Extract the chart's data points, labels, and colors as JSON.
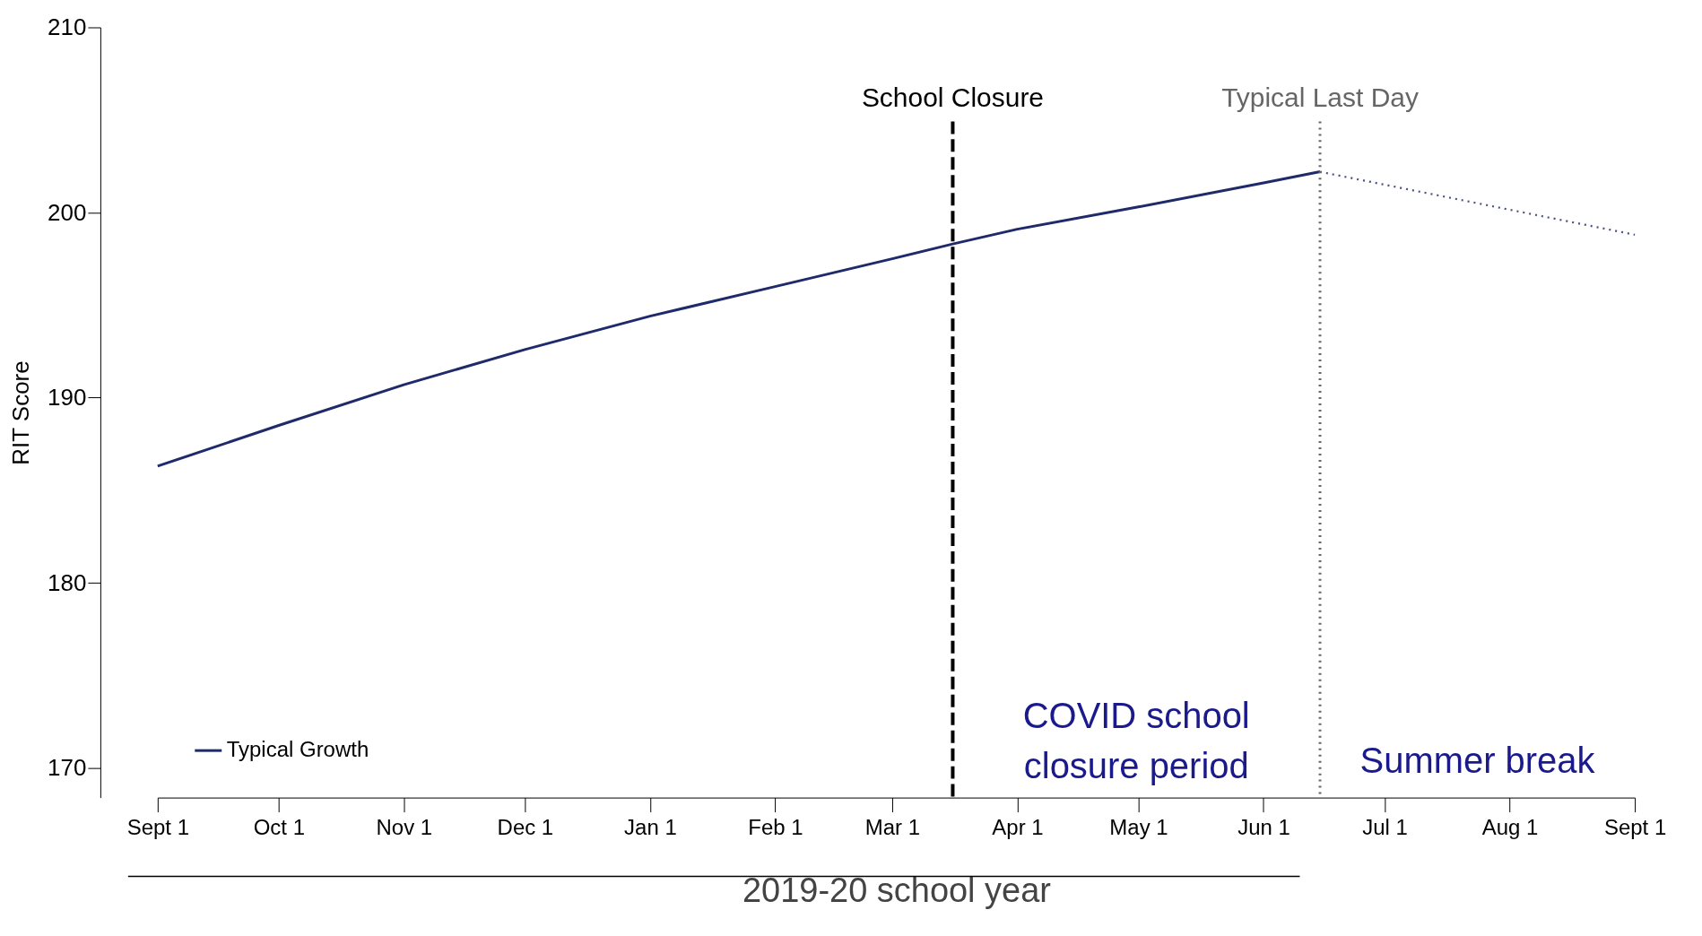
{
  "chart_data": {
    "type": "line",
    "ylabel": "RIT Score",
    "xlabel": "2019-20 school year",
    "xlim": [
      "2019-09-01",
      "2020-09-01"
    ],
    "ylim": [
      168.4,
      210
    ],
    "yticks": [
      170,
      180,
      190,
      200,
      210
    ],
    "xticks": [
      {
        "value": "2019-09-01",
        "label": "Sept 1"
      },
      {
        "value": "2019-10-01",
        "label": "Oct 1"
      },
      {
        "value": "2019-11-01",
        "label": "Nov 1"
      },
      {
        "value": "2019-12-01",
        "label": "Dec 1"
      },
      {
        "value": "2020-01-01",
        "label": "Jan 1"
      },
      {
        "value": "2020-02-01",
        "label": "Feb 1"
      },
      {
        "value": "2020-03-01",
        "label": "Mar 1"
      },
      {
        "value": "2020-04-01",
        "label": "Apr 1"
      },
      {
        "value": "2020-05-01",
        "label": "May 1"
      },
      {
        "value": "2020-06-01",
        "label": "Jun 1"
      },
      {
        "value": "2020-07-01",
        "label": "Jul 1"
      },
      {
        "value": "2020-08-01",
        "label": "Aug 1"
      },
      {
        "value": "2020-09-01",
        "label": "Sept 1"
      }
    ],
    "series": [
      {
        "name": "Typical Growth",
        "color": "#1f2a6b",
        "line_style": "solid",
        "x": [
          "2019-09-01",
          "2019-10-01",
          "2019-11-01",
          "2019-12-01",
          "2020-01-01",
          "2020-02-01",
          "2020-03-01",
          "2020-03-16",
          "2020-04-01",
          "2020-05-01",
          "2020-06-01",
          "2020-06-15"
        ],
        "values": [
          186.3,
          188.5,
          190.7,
          192.6,
          194.4,
          196.0,
          197.5,
          198.3,
          199.1,
          200.3,
          201.6,
          202.2
        ]
      },
      {
        "color": "#4a5080",
        "line_style": "dotted",
        "x": [
          "2020-06-15",
          "2020-09-01"
        ],
        "values": [
          202.2,
          198.8
        ]
      }
    ],
    "ref_lines": [
      {
        "axis": "x",
        "value": "2020-03-16",
        "label": "School Closure",
        "color": "#000000",
        "line_style": "dashed"
      },
      {
        "axis": "x",
        "value": "2020-06-15",
        "label": "Typical Last Day",
        "color": "#666666",
        "line_style": "dotted"
      }
    ],
    "annotations": [
      "COVID school closure period",
      "Summer break"
    ],
    "grid": false,
    "legend": "bottom left"
  }
}
